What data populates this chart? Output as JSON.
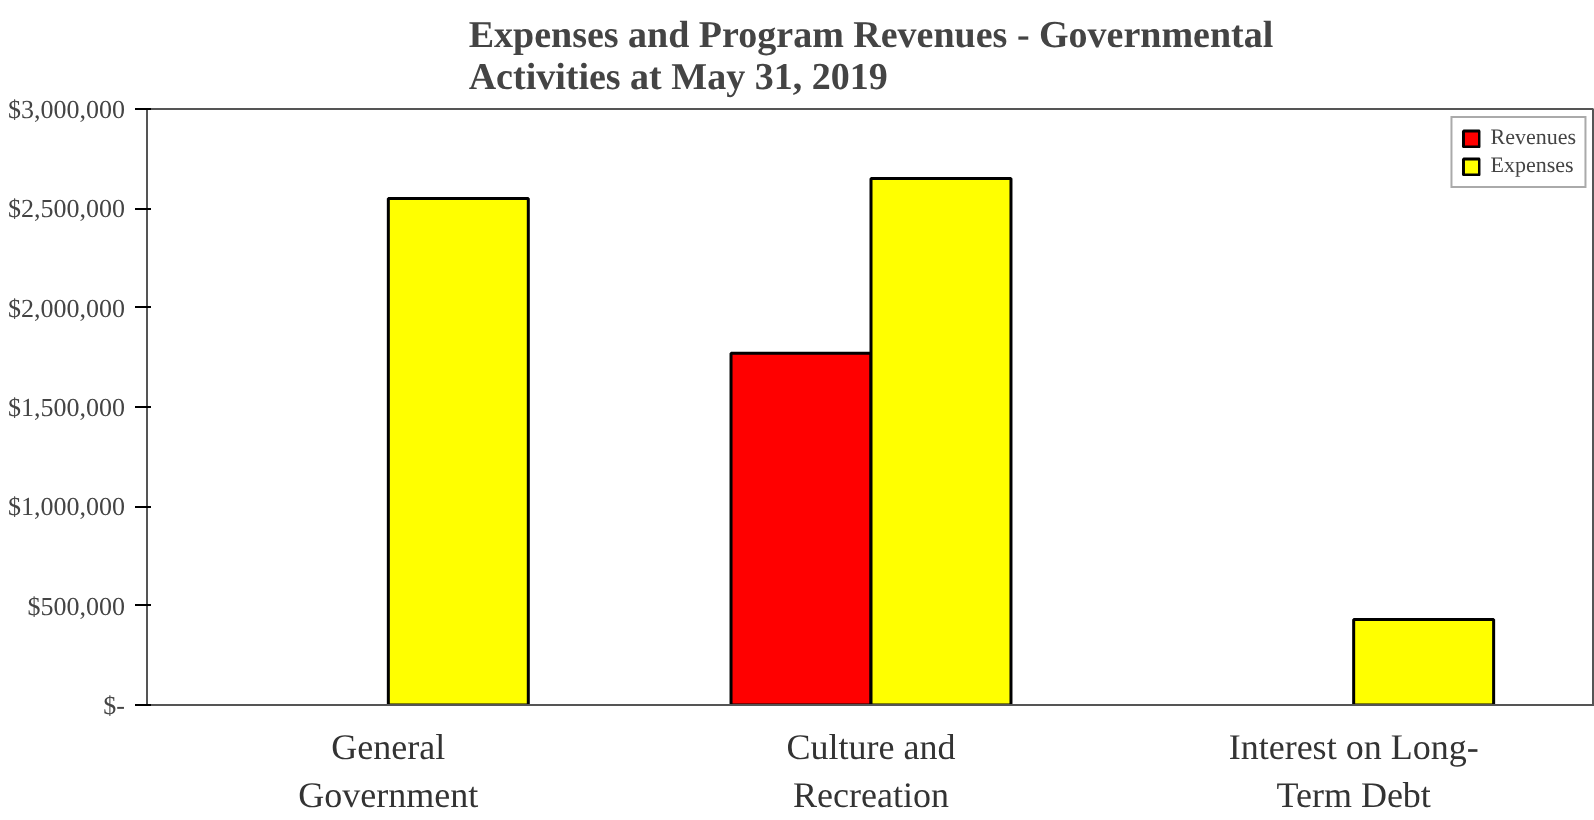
{
  "chart_data": {
    "type": "bar",
    "title": "Expenses and Program Revenues - Governmental Activities at May 31, 2019",
    "categories": [
      "General Government",
      "Culture and Recreation",
      "Interest on Long-Term Debt"
    ],
    "series": [
      {
        "name": "Revenues",
        "color": "#ff0000",
        "values": [
          null,
          1770000,
          null
        ]
      },
      {
        "name": "Expenses",
        "color": "#ffff00",
        "values": [
          2550000,
          2650000,
          430000
        ]
      }
    ],
    "ylim": [
      0,
      3000000
    ],
    "yticks": [
      {
        "value": 0,
        "label": "$-"
      },
      {
        "value": 500000,
        "label": "$500,000"
      },
      {
        "value": 1000000,
        "label": "$1,000,000"
      },
      {
        "value": 1500000,
        "label": "$1,500,000"
      },
      {
        "value": 2000000,
        "label": "$2,000,000"
      },
      {
        "value": 2500000,
        "label": "$2,500,000"
      },
      {
        "value": 3000000,
        "label": "$3,000,000"
      }
    ],
    "grid": false,
    "legend": "top right"
  }
}
